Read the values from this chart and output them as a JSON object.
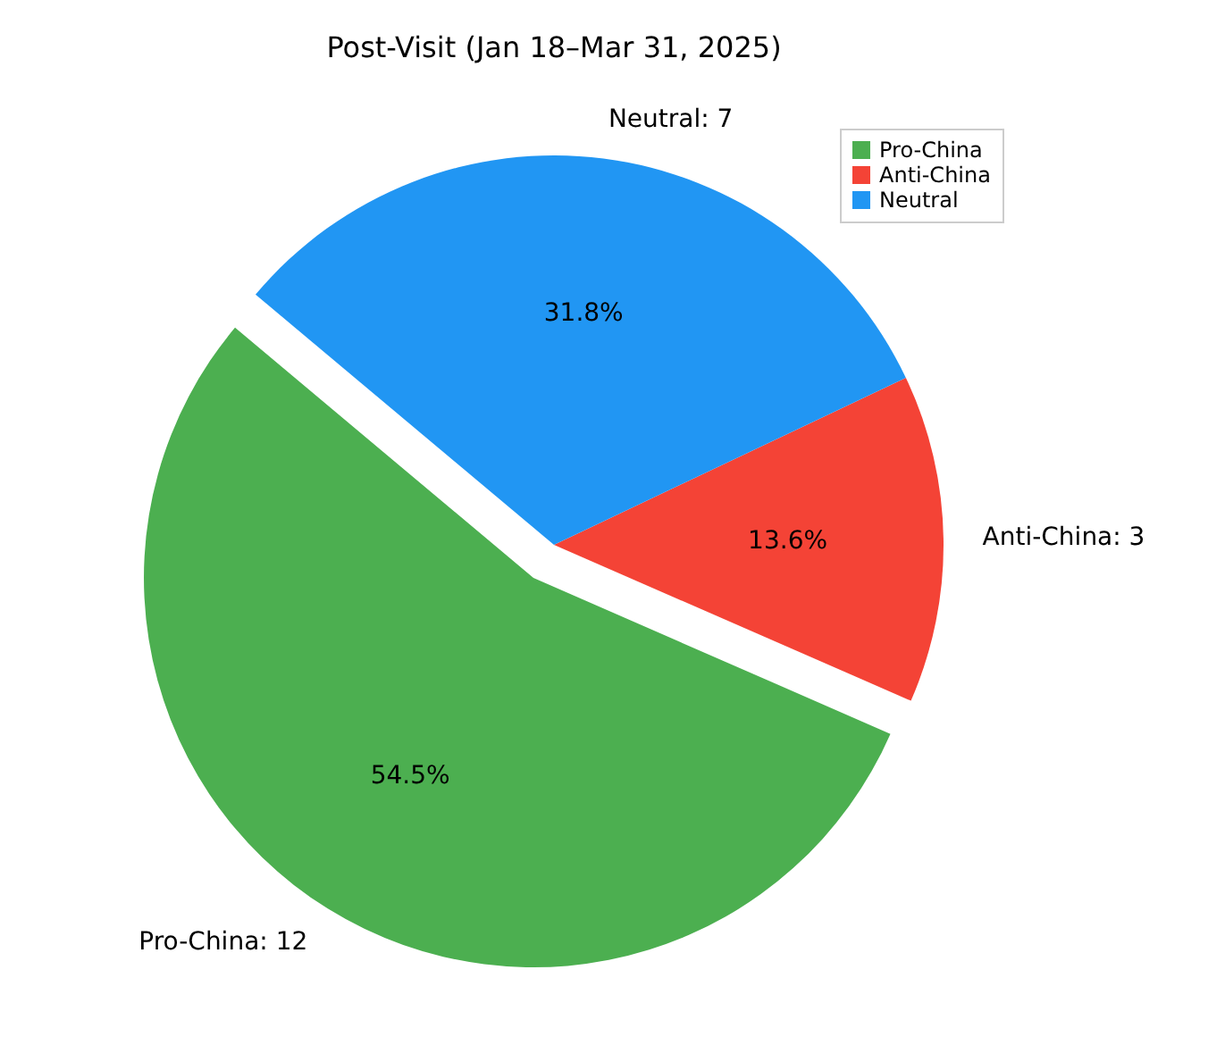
{
  "chart_data": {
    "type": "pie",
    "title": "Post-Visit (Jan 18–Mar 31, 2025)",
    "categories": [
      "Pro-China",
      "Anti-China",
      "Neutral"
    ],
    "values": [
      54.5,
      13.6,
      31.8
    ],
    "annotations": [
      "Pro-China: 12",
      "Anti-China: 3",
      "Neutral: 7"
    ],
    "colors": [
      "#4caf50",
      "#f44336",
      "#2196f3"
    ],
    "value_labels": [
      "54.5%",
      "13.6%",
      "31.8%"
    ],
    "legend": "top right"
  }
}
